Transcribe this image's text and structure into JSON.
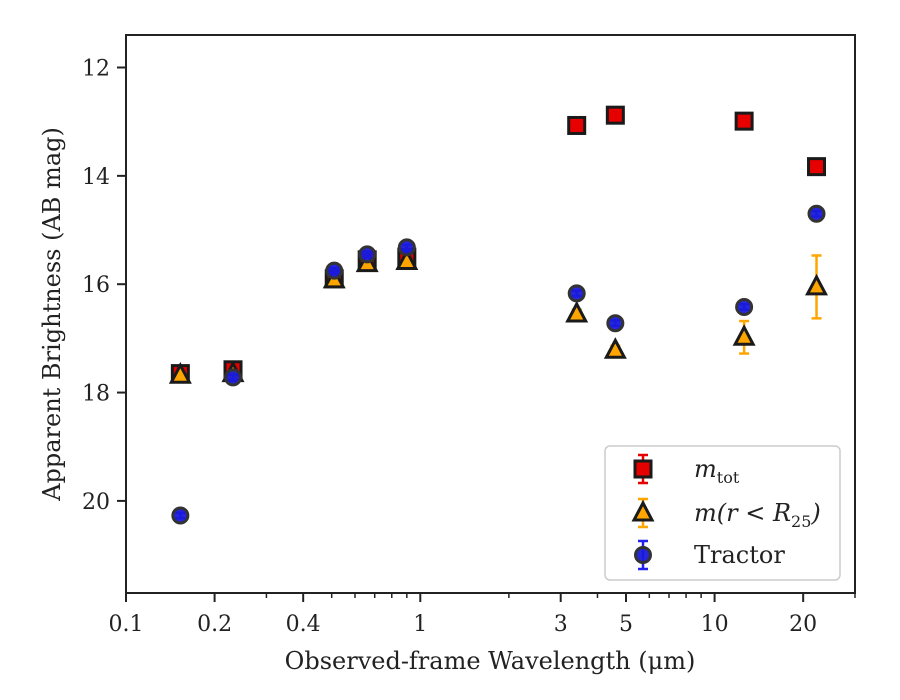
{
  "chart_data": {
    "type": "scatter",
    "xlabel": "Observed-frame Wavelength (μm)",
    "ylabel": "Apparent Brightness (AB mag)",
    "xscale": "log",
    "xlim": [
      0.1,
      30
    ],
    "ylim": [
      21.7,
      11.4
    ],
    "y_inverted": true,
    "x_ticks": [
      {
        "value": 0.1,
        "label": "0.1"
      },
      {
        "value": 0.2,
        "label": "0.2"
      },
      {
        "value": 0.4,
        "label": "0.4"
      },
      {
        "value": 1,
        "label": "1"
      },
      {
        "value": 3,
        "label": "3"
      },
      {
        "value": 5,
        "label": "5"
      },
      {
        "value": 10,
        "label": "10"
      },
      {
        "value": 20,
        "label": "20"
      }
    ],
    "y_ticks": [
      {
        "value": 12,
        "label": "12"
      },
      {
        "value": 14,
        "label": "14"
      },
      {
        "value": 16,
        "label": "16"
      },
      {
        "value": 18,
        "label": "18"
      },
      {
        "value": 20,
        "label": "20"
      }
    ],
    "grid": false,
    "legend_position": "bottom-right",
    "series": [
      {
        "name": "m_tot",
        "legend_label_base": "m",
        "legend_label_sub": "tot",
        "marker": "square",
        "face_color": "#e60000",
        "edge_color": "#1a1a1a",
        "error_color": "#e60000",
        "points": [
          {
            "x": 0.153,
            "y": 17.65,
            "yerr": 0.08
          },
          {
            "x": 0.231,
            "y": 17.58,
            "yerr": 0.08
          },
          {
            "x": 0.51,
            "y": 15.9,
            "yerr": 0.05
          },
          {
            "x": 0.66,
            "y": 15.55,
            "yerr": 0.05
          },
          {
            "x": 0.9,
            "y": 15.5,
            "yerr": 0.05
          },
          {
            "x": 3.4,
            "y": 13.07,
            "yerr": 0.03
          },
          {
            "x": 4.6,
            "y": 12.88,
            "yerr": 0.03
          },
          {
            "x": 12.6,
            "y": 12.99,
            "yerr": 0.03
          },
          {
            "x": 22.2,
            "y": 13.83,
            "yerr": 0.05
          }
        ]
      },
      {
        "name": "m(r < R_25)",
        "legend_label_base": "m(r < R",
        "legend_label_sub": "25",
        "legend_label_tail": ")",
        "marker": "triangle",
        "face_color": "#ffa500",
        "edge_color": "#1a1a1a",
        "error_color": "#ffa500",
        "points": [
          {
            "x": 0.153,
            "y": 17.68,
            "yerr": 0.05
          },
          {
            "x": 0.231,
            "y": 17.65,
            "yerr": 0.05
          },
          {
            "x": 0.51,
            "y": 15.92,
            "yerr": 0.05
          },
          {
            "x": 0.66,
            "y": 15.62,
            "yerr": 0.05
          },
          {
            "x": 0.9,
            "y": 15.58,
            "yerr": 0.05
          },
          {
            "x": 3.4,
            "y": 16.55,
            "yerr": 0.08
          },
          {
            "x": 4.6,
            "y": 17.22,
            "yerr": 0.08
          },
          {
            "x": 12.6,
            "y": 16.98,
            "yerr": 0.3
          },
          {
            "x": 22.2,
            "y": 16.05,
            "yerr": 0.58
          }
        ]
      },
      {
        "name": "Tractor",
        "marker": "circle",
        "face_color": "#1a1adb",
        "edge_color": "#333333",
        "error_color": "#2222ee",
        "points": [
          {
            "x": 0.153,
            "y": 20.27,
            "yerr": 0.05
          },
          {
            "x": 0.231,
            "y": 17.72,
            "yerr": 0.05
          },
          {
            "x": 0.51,
            "y": 15.75,
            "yerr": 0.05
          },
          {
            "x": 0.66,
            "y": 15.45,
            "yerr": 0.05
          },
          {
            "x": 0.9,
            "y": 15.32,
            "yerr": 0.05
          },
          {
            "x": 3.4,
            "y": 16.17,
            "yerr": 0.05
          },
          {
            "x": 4.6,
            "y": 16.72,
            "yerr": 0.05
          },
          {
            "x": 12.6,
            "y": 16.42,
            "yerr": 0.05
          },
          {
            "x": 22.2,
            "y": 14.7,
            "yerr": 0.05
          }
        ]
      }
    ]
  }
}
